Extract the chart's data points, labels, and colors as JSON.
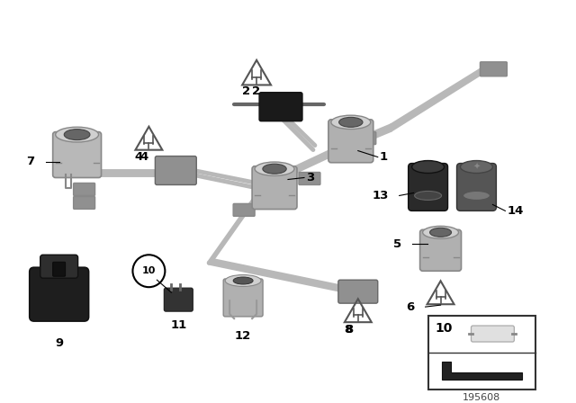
{
  "bg_color": "#ffffff",
  "part_number": "195608",
  "wire_color": "#b8b8b8",
  "wire_lw": 3.5,
  "socket_color": "#b0b0b0",
  "socket_dark": "#888888",
  "connector_color": "#909090",
  "black_color": "#222222"
}
